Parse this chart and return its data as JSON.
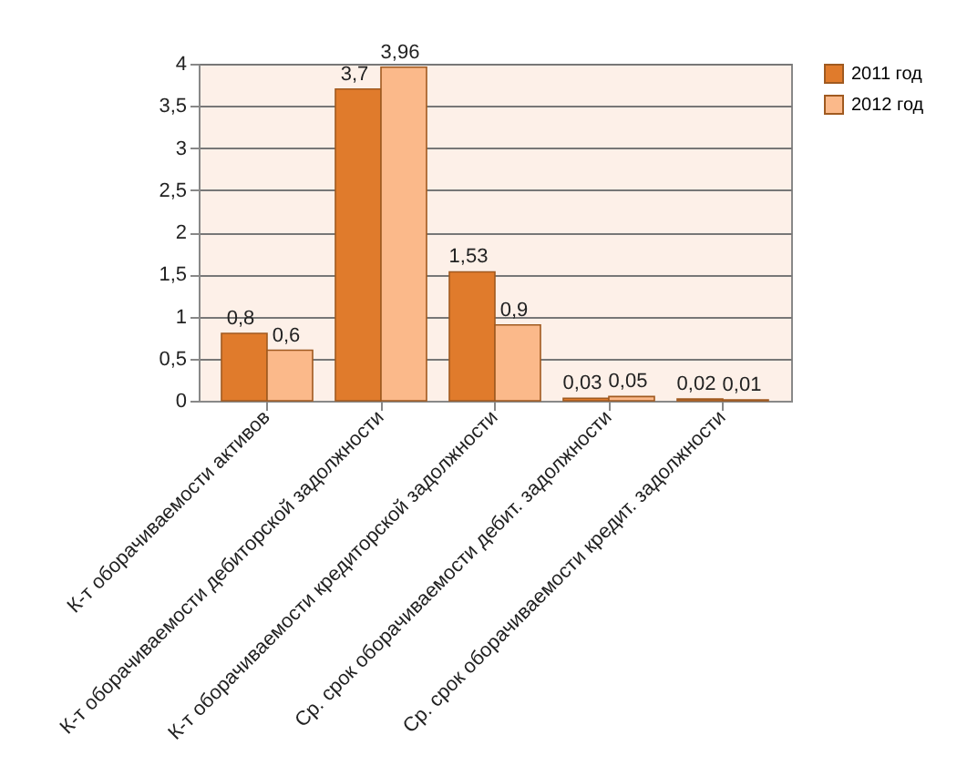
{
  "chart_data": {
    "type": "bar",
    "categories": [
      "К-т оборачиваемости активов",
      "К-т оборачиваемости дебиторской задолжности",
      "К-т оборачиваемости кредиторской задолжности",
      "Ср. срок оборачиваемости дебит. задолжности",
      "Ср. срок оборачиваемости кредит. задолжности"
    ],
    "series": [
      {
        "name": "2011 год",
        "color": "#e07b2c",
        "values": [
          0.8,
          3.7,
          1.53,
          0.03,
          0.02
        ],
        "value_labels": [
          "0,8",
          "3,7",
          "1,53",
          "0,03",
          "0,02"
        ]
      },
      {
        "name": "2012 год",
        "color": "#fbb98a",
        "values": [
          0.6,
          3.96,
          0.9,
          0.05,
          0.01
        ],
        "value_labels": [
          "0,6",
          "3,96",
          "0,9",
          "0,05",
          "0,01"
        ]
      }
    ],
    "ylim": [
      0,
      4
    ],
    "yticks": [
      0,
      {
        "value": 0.5,
        "label": "0,5"
      },
      1,
      {
        "value": 1.5,
        "label": "1,5"
      },
      2,
      {
        "value": 2.5,
        "label": "2,5"
      },
      3,
      {
        "value": 3.5,
        "label": "3,5"
      },
      4
    ],
    "grid": "y",
    "legend": "right"
  }
}
